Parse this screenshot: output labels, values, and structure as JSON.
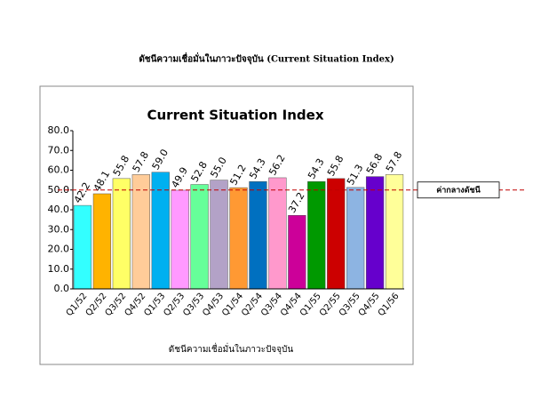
{
  "chart_data": {
    "type": "bar",
    "page_title": "ดัชนีความเชื่อมั่นในภาวะปัจจุบัน (Current Situation Index)",
    "title": "Current Situation Index",
    "x_label": "ดัชนีความเชื่อมั่นในภาวะปัจจุบัน",
    "categories": [
      "Q1/52",
      "Q2/52",
      "Q3/52",
      "Q4/52",
      "Q1/53",
      "Q2/53",
      "Q3/53",
      "Q4/53",
      "Q1/54",
      "Q2/54",
      "Q3/54",
      "Q4/54",
      "Q1/55",
      "Q2/55",
      "Q3/55",
      "Q4/55",
      "Q1/56"
    ],
    "values": [
      42.2,
      48.1,
      55.8,
      57.8,
      59.0,
      49.9,
      52.8,
      55.0,
      51.2,
      54.3,
      56.2,
      37.2,
      54.3,
      55.8,
      51.3,
      56.8,
      57.8
    ],
    "value_labels": [
      "42.2",
      "48.1",
      "55.8",
      "57.8",
      "59.0",
      "49.9",
      "52.8",
      "55.0",
      "51.2",
      "54.3",
      "56.2",
      "37.2",
      "54.3",
      "55.8",
      "51.3",
      "56.8",
      "57.8"
    ],
    "colors": [
      "#33ffff",
      "#ffb300",
      "#ffff66",
      "#ffcc99",
      "#00b0f0",
      "#ff99ff",
      "#66ff99",
      "#b3a2c7",
      "#ff9933",
      "#0070c0",
      "#ff99cc",
      "#cc0099",
      "#009900",
      "#cc0000",
      "#8db4e2",
      "#6600cc",
      "#ffff99"
    ],
    "ylim": [
      0,
      80
    ],
    "yticks": [
      {
        "value": 0,
        "label": "0.0"
      },
      {
        "value": 10,
        "label": "10.0"
      },
      {
        "value": 20,
        "label": "20.0"
      },
      {
        "value": 30,
        "label": "30.0"
      },
      {
        "value": 40,
        "label": "40.0"
      },
      {
        "value": 50,
        "label": "50.0"
      },
      {
        "value": 60,
        "label": "60.0"
      },
      {
        "value": 70,
        "label": "70.0"
      },
      {
        "value": 80,
        "label": "80.0"
      }
    ],
    "reference_line": {
      "value": 50,
      "label": "ค่ากลางดัชนี",
      "color": "#c00000"
    }
  }
}
